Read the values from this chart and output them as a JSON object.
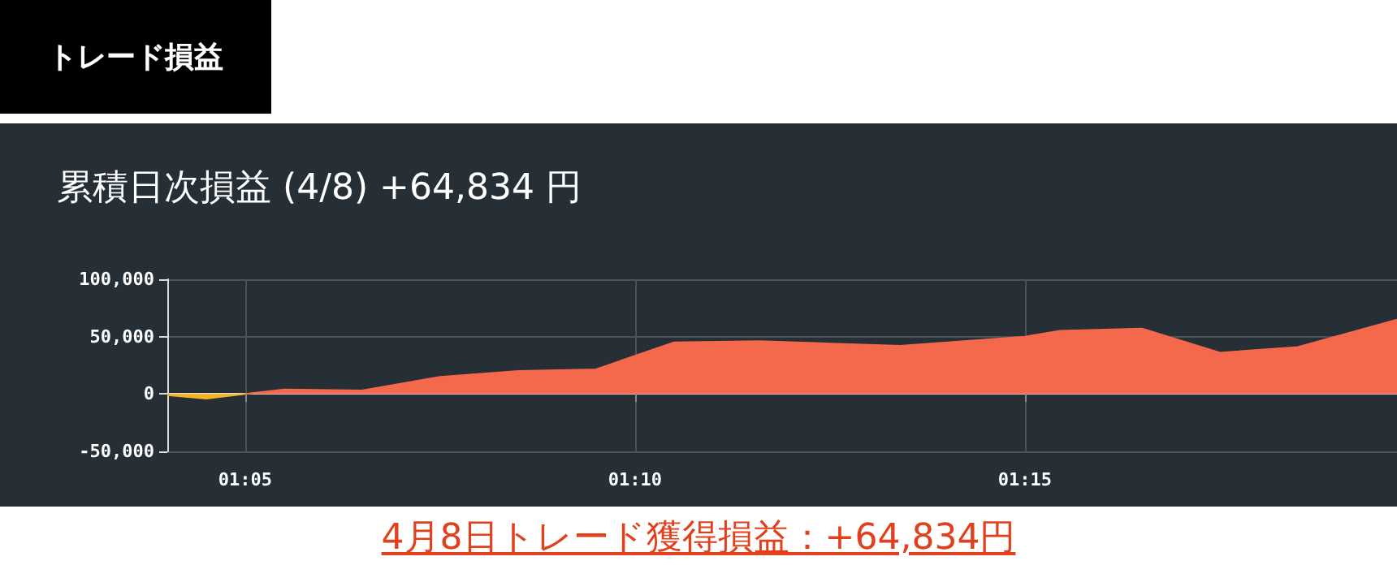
{
  "chart_data": {
    "type": "area",
    "title": "累積日次損益 (4/8) +64,834 円",
    "annotations": [
      "トレード損益",
      "4月8日トレード獲得損益：+64,834円"
    ],
    "series": [
      {
        "color": "#f5b520",
        "x": [
          1.0667,
          1.075,
          1.0833
        ],
        "values": [
          -1000,
          -4000,
          0
        ]
      },
      {
        "color": "#f4694c",
        "x": [
          1.0833,
          1.0917,
          1.1083,
          1.125,
          1.1417,
          1.1583,
          1.175,
          1.1933,
          1.2233,
          1.25,
          1.2575,
          1.275,
          1.2917,
          1.3083,
          1.3295
        ],
        "values": [
          0,
          4000,
          3000,
          15000,
          20000,
          21500,
          45000,
          46000,
          42000,
          50000,
          55000,
          57000,
          36000,
          41000,
          64834
        ]
      }
    ],
    "xlim": [
      1.0667,
      1.3295
    ],
    "xticks": [
      {
        "value": 1.08333,
        "label": "01:05"
      },
      {
        "value": 1.16667,
        "label": "01:10"
      },
      {
        "value": 1.25,
        "label": "01:15"
      }
    ],
    "ylim": [
      -50000,
      100000
    ],
    "yticks": [
      {
        "value": -50000,
        "label": "-50,000"
      },
      {
        "value": 0,
        "label": "0"
      },
      {
        "value": 50000,
        "label": "50,000"
      },
      {
        "value": 100000,
        "label": "100,000"
      }
    ],
    "grid": true,
    "marker": "none"
  }
}
